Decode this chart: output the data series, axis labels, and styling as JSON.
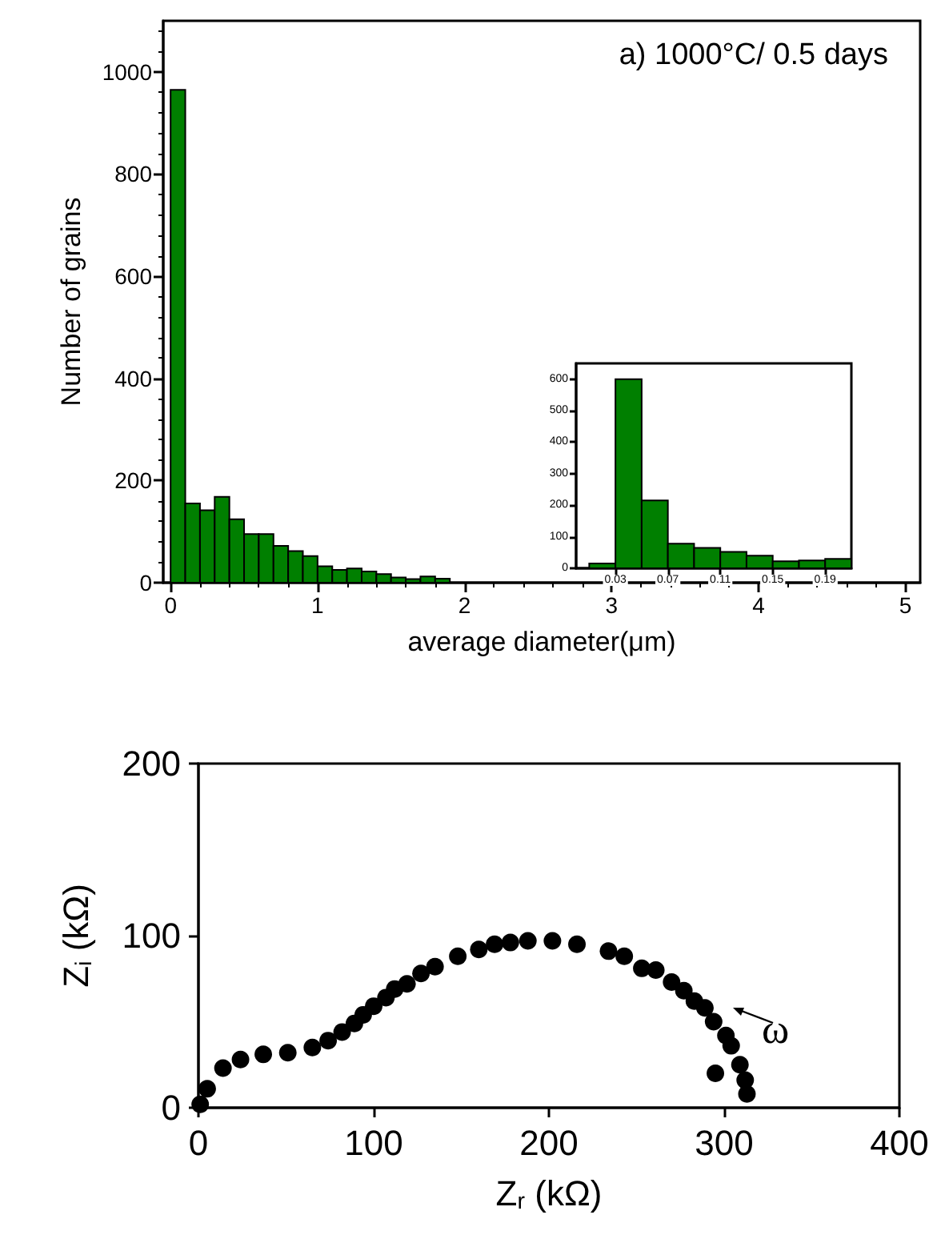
{
  "chart_data": [
    {
      "type": "histogram",
      "title": "a) 1000°C/ 0.5 days",
      "xlabel": "average diameter(μm)",
      "ylabel": "Number of grains",
      "color": "#007f00",
      "bins": [
        0,
        0.1,
        0.2,
        0.3,
        0.4,
        0.5,
        0.6,
        0.7,
        0.8,
        0.9,
        1.0,
        1.1,
        1.2,
        1.3,
        1.4,
        1.5,
        1.6,
        1.7,
        1.8,
        1.9
      ],
      "values": [
        965,
        155,
        142,
        168,
        124,
        95,
        95,
        72,
        62,
        52,
        32,
        25,
        28,
        22,
        17,
        10,
        7,
        12,
        8
      ],
      "xlim": [
        -0.05,
        5.1
      ],
      "xticks": [
        0,
        1,
        2,
        3,
        4,
        5
      ],
      "ylim": [
        0,
        1100
      ],
      "yticks": [
        0,
        200,
        400,
        600,
        800,
        1000
      ],
      "grid": false
    },
    {
      "type": "histogram",
      "color": "#007f00",
      "bins": [
        0.01,
        0.03,
        0.05,
        0.07,
        0.09,
        0.11,
        0.13,
        0.15,
        0.17,
        0.19,
        0.21
      ],
      "values": [
        15,
        600,
        215,
        78,
        65,
        52,
        40,
        22,
        25,
        30
      ],
      "xlim": [
        0,
        0.21
      ],
      "xticks": [
        0.03,
        0.07,
        0.11,
        0.15,
        0.19
      ],
      "ylim": [
        0,
        650
      ],
      "yticks": [
        0,
        100,
        200,
        300,
        400,
        500,
        600
      ],
      "grid": false
    },
    {
      "type": "scatter",
      "xlabel": "Z$_{r}$ (kΩ)",
      "ylabel": "Z$_{i}$ (kΩ)",
      "color": "#000000",
      "marker": "circle",
      "x": [
        1,
        5,
        14,
        24,
        37,
        51,
        65,
        74,
        82,
        89,
        94,
        100,
        107,
        112,
        119,
        127,
        135,
        148,
        160,
        169,
        178,
        188,
        202,
        216,
        234,
        243,
        253,
        261,
        270,
        277,
        283,
        289,
        294,
        301,
        304,
        309,
        312,
        313,
        295
      ],
      "values": [
        2,
        11,
        23,
        28,
        31,
        32,
        35,
        39,
        44,
        49,
        54,
        59,
        64,
        69,
        72,
        78,
        82,
        88,
        92,
        95,
        96,
        97,
        97,
        95,
        91,
        88,
        81,
        80,
        73,
        68,
        62,
        58,
        50,
        42,
        36,
        25,
        16,
        8,
        20
      ],
      "xlim": [
        0,
        400
      ],
      "xticks": [
        0,
        100,
        200,
        300,
        400
      ],
      "ylim": [
        0,
        200
      ],
      "yticks": [
        0,
        100,
        200
      ],
      "grid": false,
      "annotations": [
        "ω"
      ]
    }
  ]
}
